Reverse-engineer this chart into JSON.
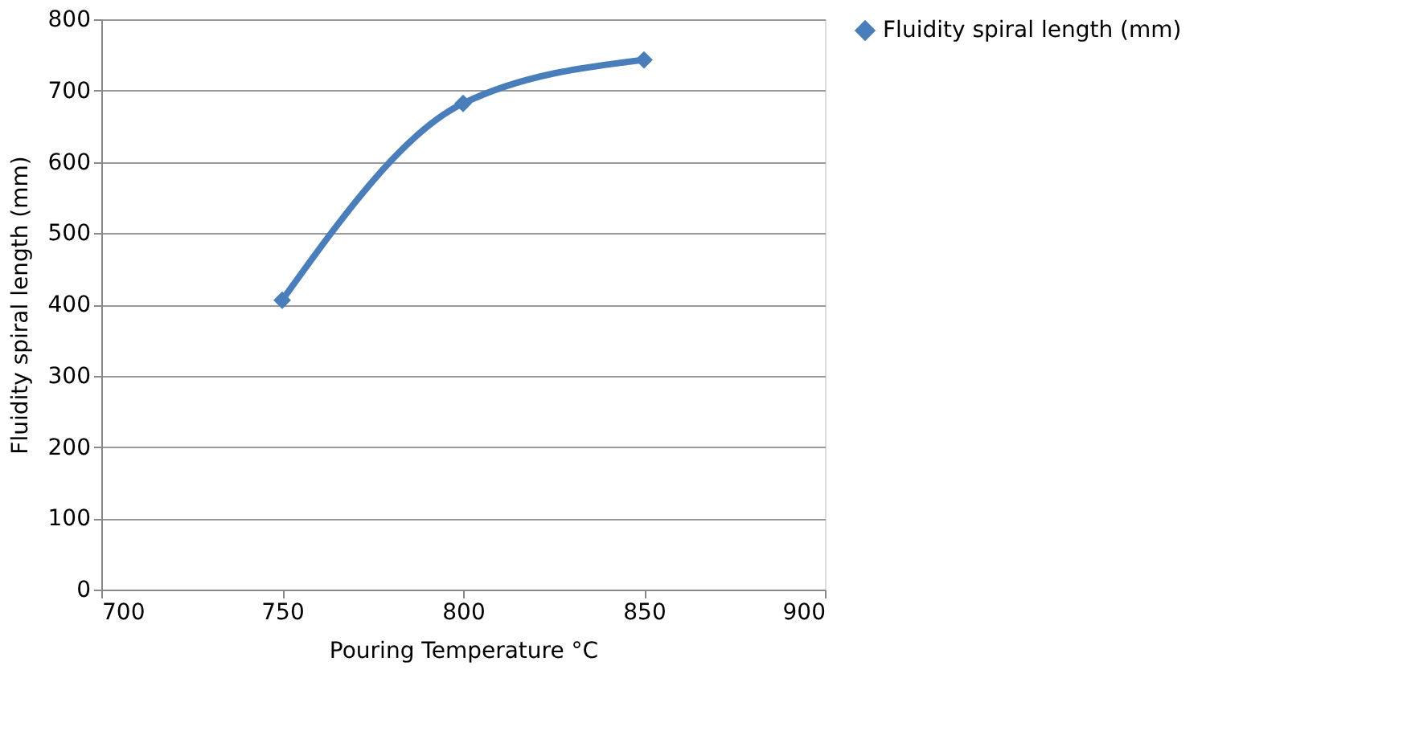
{
  "chart_data": {
    "type": "line",
    "xlabel": "Pouring Temperature °C",
    "ylabel": "Fluidity spiral length (mm)",
    "x": [
      750,
      800,
      850
    ],
    "series": [
      {
        "name": "Fluidity spiral length (mm)",
        "color": "#4a7ebb",
        "values": [
          406,
          682,
          743
        ]
      }
    ],
    "xlim": [
      700,
      900
    ],
    "xticks": [
      700,
      750,
      800,
      850,
      900
    ],
    "ylim": [
      0,
      800
    ],
    "yticks": [
      0,
      100,
      200,
      300,
      400,
      500,
      600,
      700,
      800
    ],
    "grid": "y",
    "legend": "right",
    "marker": "diamond",
    "line_style": "solid"
  }
}
